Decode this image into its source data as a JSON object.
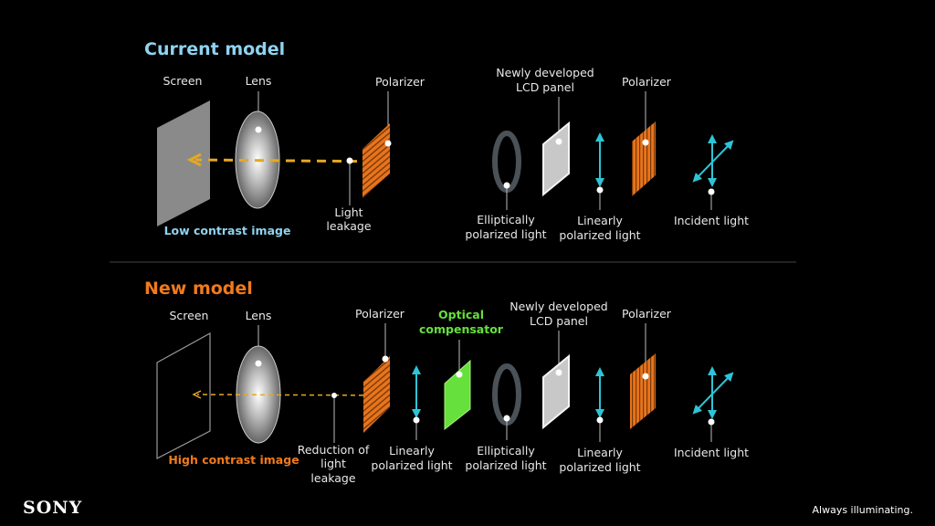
{
  "colors": {
    "current_title": "#8fd3f0",
    "new_title": "#f07a1c",
    "beam": "#e6a820",
    "polarizer": "#e8741c",
    "compensator": "#66e03c",
    "polarization_arrow": "#2ec4d6",
    "ellipse_ring": "#4a5258"
  },
  "current": {
    "title": "Current model",
    "screen": "Screen",
    "lens": "Lens",
    "polarizer_left": "Polarizer",
    "leakage": [
      "Light",
      "leakage"
    ],
    "image_caption": "Low contrast image",
    "elliptical": [
      "Elliptically",
      "polarized light"
    ],
    "lcd": [
      "Newly developed",
      "LCD panel"
    ],
    "linear": [
      "Linearly",
      "polarized light"
    ],
    "polarizer_right": "Polarizer",
    "incident": "Incident light"
  },
  "new": {
    "title": "New model",
    "screen": "Screen",
    "lens": "Lens",
    "polarizer_left": "Polarizer",
    "leakage": [
      "Reduction of",
      "light",
      "leakage"
    ],
    "image_caption": "High contrast image",
    "linear_left": [
      "Linearly",
      "polarized light"
    ],
    "compensator": [
      "Optical",
      "compensator"
    ],
    "elliptical": [
      "Elliptically",
      "polarized light"
    ],
    "lcd": [
      "Newly developed",
      "LCD panel"
    ],
    "linear": [
      "Linearly",
      "polarized light"
    ],
    "polarizer_right": "Polarizer",
    "incident": "Incident light"
  },
  "footer": {
    "logo": "SONY",
    "tagline": "Always illuminating."
  }
}
